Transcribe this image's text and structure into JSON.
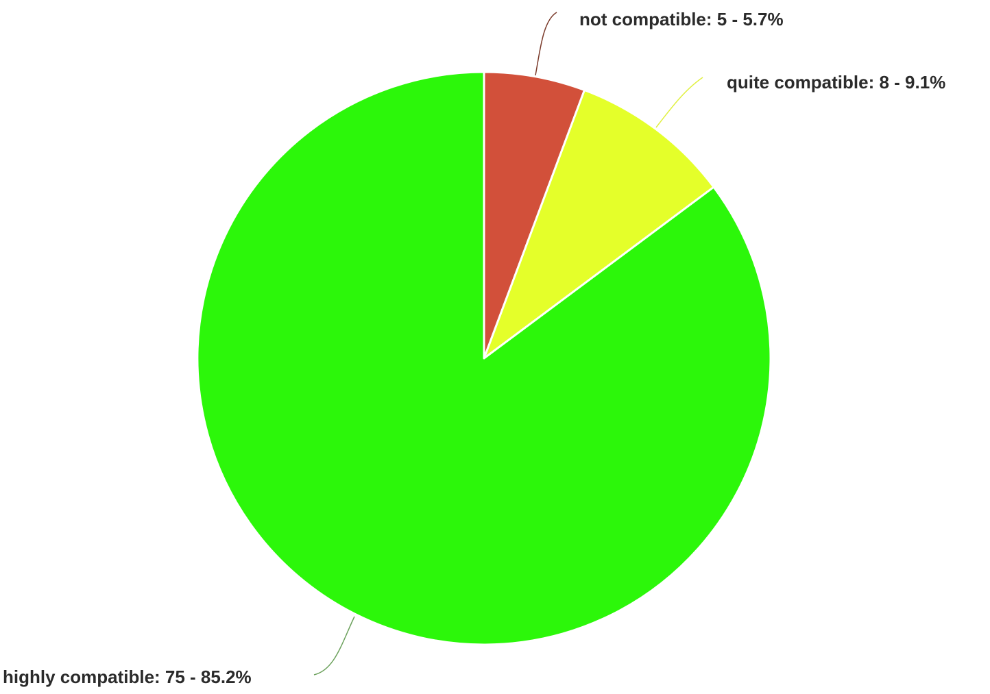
{
  "chart_data": {
    "type": "pie",
    "slices": [
      {
        "name": "not compatible",
        "count": 5,
        "percent": 5.7,
        "color": "#d2503a",
        "label": "not compatible: 5 - 5.7%",
        "leader_color": "#7a3a2a"
      },
      {
        "name": "quite compatible",
        "count": 8,
        "percent": 9.1,
        "color": "#e4ff2a",
        "label": "quite compatible: 8 - 9.1%",
        "leader_color": "#e0f040"
      },
      {
        "name": "highly compatible",
        "count": 75,
        "percent": 85.2,
        "color": "#2cf70a",
        "label": "highly compatible: 75 - 85.2%",
        "leader_color": "#6aa05a"
      }
    ],
    "start_angle": "12 o'clock",
    "direction": "clockwise",
    "legend": "none"
  }
}
